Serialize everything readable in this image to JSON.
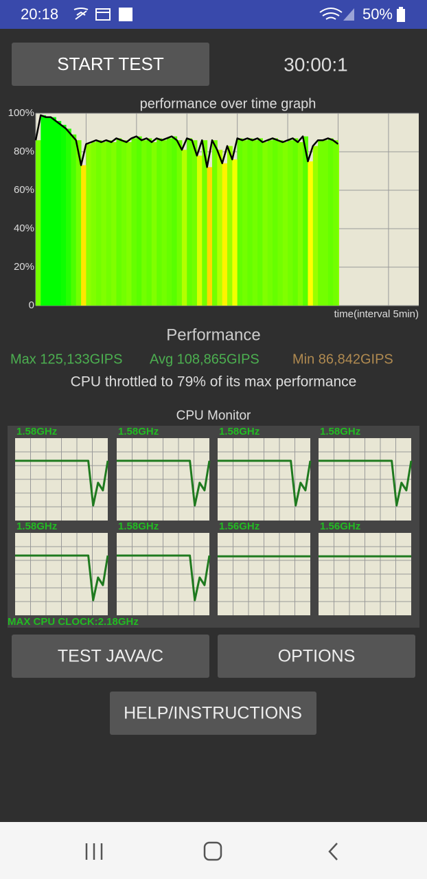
{
  "status_bar": {
    "time": "20:18",
    "battery": "50%"
  },
  "controls": {
    "start_button": "START TEST",
    "timer": "30:00:1"
  },
  "chart_data": {
    "type": "area",
    "title": "performance over time graph",
    "x_label": "time(interval 5min)",
    "xlim": [
      0,
      38
    ],
    "xticks": [
      0,
      5,
      10,
      15,
      20,
      25,
      30,
      35
    ],
    "ylim": [
      0,
      100
    ],
    "yticks": [
      0,
      {
        "value": 20,
        "label": "20%"
      },
      {
        "value": 40,
        "label": "40%"
      },
      {
        "value": 60,
        "label": "60%"
      },
      {
        "value": 80,
        "label": "80%"
      },
      {
        "value": 100,
        "label": "100%"
      }
    ],
    "grid": true,
    "color": "#000000",
    "x": [
      0,
      0.5,
      1,
      1.5,
      2,
      2.5,
      3,
      3.5,
      4,
      4.5,
      5,
      5.5,
      6,
      6.5,
      7,
      7.5,
      8,
      8.5,
      9,
      9.5,
      10,
      10.5,
      11,
      11.5,
      12,
      12.5,
      13,
      13.5,
      14,
      14.5,
      15,
      15.5,
      16,
      16.5,
      17,
      17.5,
      18,
      18.5,
      19,
      19.5,
      20,
      20.5,
      21,
      21.5,
      22,
      22.5,
      23,
      23.5,
      24,
      24.5,
      25,
      25.5,
      26,
      26.5,
      27,
      27.5,
      28,
      28.5,
      29,
      29.5,
      30
    ],
    "values": [
      86,
      99,
      98,
      98,
      96,
      94,
      92,
      89,
      86,
      73,
      84,
      85,
      86,
      85,
      86,
      85,
      87,
      86,
      85,
      87,
      88,
      86,
      87,
      85,
      87,
      86,
      87,
      88,
      86,
      81,
      87,
      86,
      78,
      86,
      72,
      86,
      81,
      74,
      83,
      76,
      87,
      86,
      87,
      86,
      87,
      85,
      86,
      87,
      86,
      85,
      86,
      87,
      85,
      88,
      75,
      83,
      86,
      86,
      87,
      86,
      84
    ]
  },
  "performance": {
    "heading": "Performance",
    "max": "Max 125,133GIPS",
    "avg": "Avg 108,865GIPS",
    "min": "Min 86,842GIPS",
    "throttle": "CPU throttled to 79% of its max performance"
  },
  "cpu_monitor": {
    "title": "CPU Monitor",
    "ylim": [
      0,
      2.18
    ],
    "max_clock": "MAX CPU CLOCK:2.18GHz",
    "cores": [
      {
        "label": "1.58GHz",
        "values": [
          1.58,
          1.58,
          1.58,
          1.58,
          1.58,
          1.58,
          1.58,
          1.58,
          1.58,
          1.58,
          1.58,
          1.58,
          1.58,
          1.58,
          1.58,
          1.58,
          0.4,
          1.0,
          0.8,
          1.58
        ]
      },
      {
        "label": "1.58GHz",
        "values": [
          1.58,
          1.58,
          1.58,
          1.58,
          1.58,
          1.58,
          1.58,
          1.58,
          1.58,
          1.58,
          1.58,
          1.58,
          1.58,
          1.58,
          1.58,
          1.58,
          0.4,
          1.0,
          0.8,
          1.58
        ]
      },
      {
        "label": "1.58GHz",
        "values": [
          1.58,
          1.58,
          1.58,
          1.58,
          1.58,
          1.58,
          1.58,
          1.58,
          1.58,
          1.58,
          1.58,
          1.58,
          1.58,
          1.58,
          1.58,
          1.58,
          0.4,
          1.0,
          0.8,
          1.58
        ]
      },
      {
        "label": "1.58GHz",
        "values": [
          1.58,
          1.58,
          1.58,
          1.58,
          1.58,
          1.58,
          1.58,
          1.58,
          1.58,
          1.58,
          1.58,
          1.58,
          1.58,
          1.58,
          1.58,
          1.58,
          0.4,
          1.0,
          0.8,
          1.58
        ]
      },
      {
        "label": "1.58GHz",
        "values": [
          1.58,
          1.58,
          1.58,
          1.58,
          1.58,
          1.58,
          1.58,
          1.58,
          1.58,
          1.58,
          1.58,
          1.58,
          1.58,
          1.58,
          1.58,
          1.58,
          0.4,
          1.0,
          0.8,
          1.58
        ]
      },
      {
        "label": "1.58GHz",
        "values": [
          1.58,
          1.58,
          1.58,
          1.58,
          1.58,
          1.58,
          1.58,
          1.58,
          1.58,
          1.58,
          1.58,
          1.58,
          1.58,
          1.58,
          1.58,
          1.58,
          0.4,
          1.0,
          0.8,
          1.58
        ]
      },
      {
        "label": "1.56GHz",
        "values": [
          1.56,
          1.56,
          1.56,
          1.56,
          1.56,
          1.56,
          1.56,
          1.56,
          1.56,
          1.56,
          1.56,
          1.56,
          1.56,
          1.56,
          1.56,
          1.56,
          1.56,
          1.56,
          1.56,
          1.56
        ]
      },
      {
        "label": "1.56GHz",
        "values": [
          1.56,
          1.56,
          1.56,
          1.56,
          1.56,
          1.56,
          1.56,
          1.56,
          1.56,
          1.56,
          1.56,
          1.56,
          1.56,
          1.56,
          1.56,
          1.56,
          1.56,
          1.56,
          1.56,
          1.56
        ]
      }
    ]
  },
  "buttons": {
    "test_java": "TEST JAVA/C",
    "options": "OPTIONS",
    "help": "HELP/INSTRUCTIONS"
  }
}
